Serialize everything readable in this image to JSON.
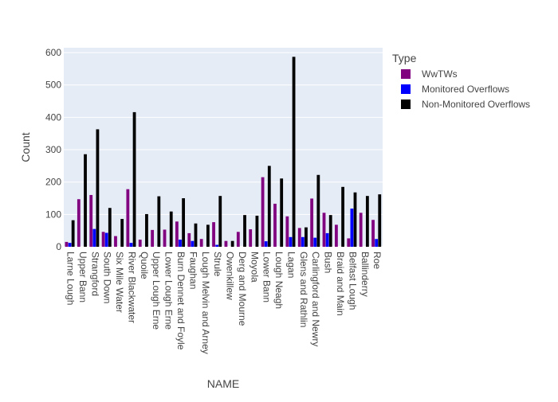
{
  "chart_data": {
    "type": "bar",
    "xlabel": "NAME",
    "ylabel": "Count",
    "ylim": [
      0,
      615
    ],
    "yticks": [
      0,
      100,
      200,
      300,
      400,
      500,
      600
    ],
    "grid": true,
    "legend_title": "Type",
    "legend_position": "top-right",
    "categories": [
      "Larne Lough",
      "Upper Bann",
      "Strangford",
      "South Down",
      "Six Mile Water",
      "River Blackwater",
      "Quoile",
      "Upper Lough Erne",
      "Lower Lough Erne",
      "Burn Dennet and Foyle",
      "Faughan",
      "Lough Melvin and Arney",
      "Strule",
      "Owenkillew",
      "Derg and Mourne",
      "Moyola",
      "Lower Bann",
      "Lough Neagh",
      "Lagan",
      "Glens and Rathlin",
      "Carlingford and Newry",
      "Bush",
      "Braid and Main",
      "Belfast Lough",
      "Ballinderry",
      "Roe"
    ],
    "series": [
      {
        "name": "WwTWs",
        "color": "#800080",
        "values": [
          15,
          147,
          160,
          46,
          33,
          178,
          22,
          52,
          53,
          78,
          42,
          24,
          76,
          18,
          46,
          54,
          215,
          133,
          94,
          58,
          149,
          105,
          68,
          26,
          105,
          83
        ]
      },
      {
        "name": "Monitored Overflows",
        "color": "#0000ff",
        "values": [
          12,
          0,
          55,
          43,
          0,
          12,
          0,
          0,
          0,
          22,
          18,
          0,
          6,
          0,
          0,
          0,
          17,
          0,
          30,
          30,
          28,
          42,
          0,
          118,
          0,
          24
        ]
      },
      {
        "name": "Non-Monitored Overflows",
        "color": "#000000",
        "values": [
          82,
          286,
          363,
          120,
          86,
          416,
          101,
          156,
          109,
          150,
          72,
          68,
          157,
          18,
          98,
          96,
          250,
          211,
          587,
          60,
          222,
          98,
          185,
          168,
          157,
          162
        ]
      }
    ]
  }
}
